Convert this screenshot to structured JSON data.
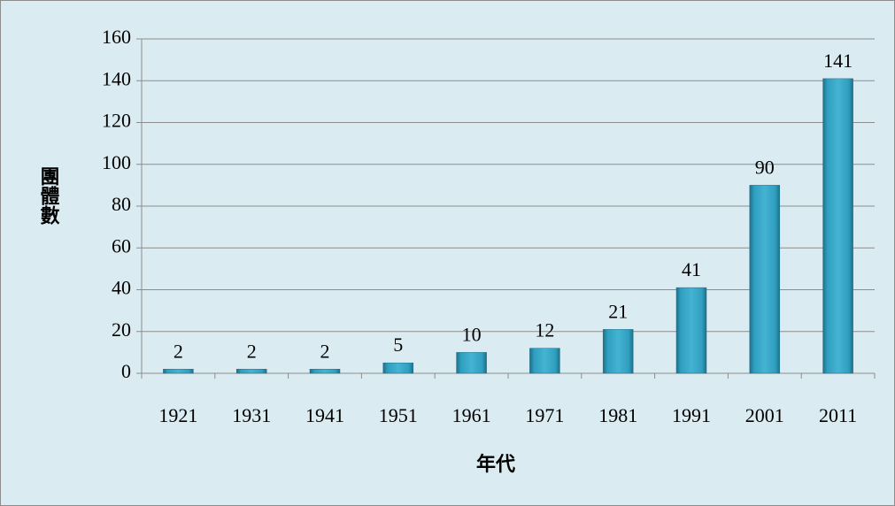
{
  "chart_data": {
    "type": "bar",
    "x_label": "年代",
    "y_label": "團體數",
    "categories": [
      "1921",
      "1931",
      "1941",
      "1951",
      "1961",
      "1971",
      "1981",
      "1991",
      "2001",
      "2011"
    ],
    "values": [
      2,
      2,
      2,
      5,
      10,
      12,
      21,
      41,
      90,
      141
    ],
    "color": "#2f9fc0",
    "ylim": [
      0,
      160
    ],
    "yticks": [
      0,
      20,
      40,
      60,
      80,
      100,
      120,
      140,
      160
    ],
    "grid": true
  }
}
